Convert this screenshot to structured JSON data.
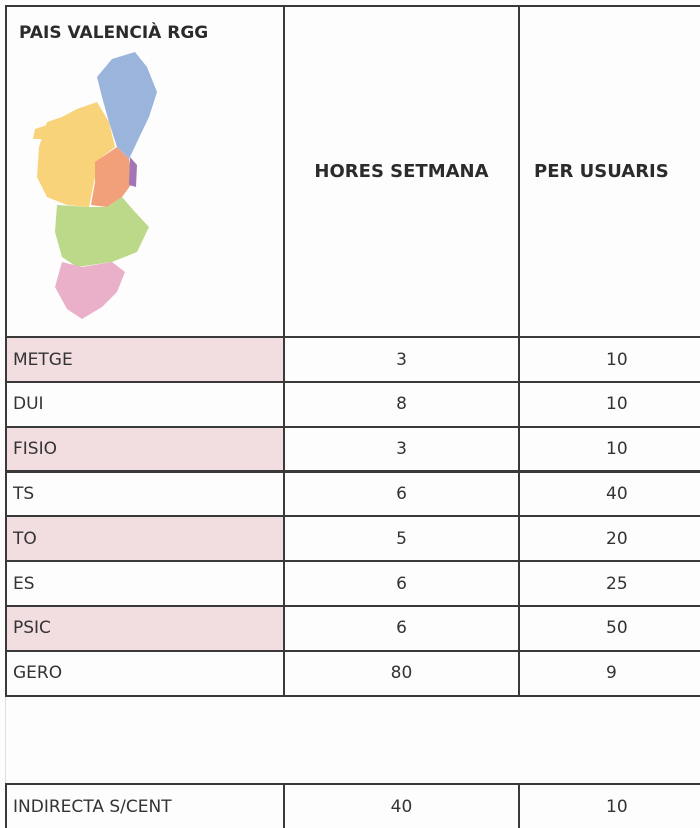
{
  "header": {
    "title": "PAIS VALENCIÀ RGG",
    "columns": [
      "HORES SETMANA",
      "PER USUARIS"
    ]
  },
  "table": {
    "rows": [
      [
        "METGE",
        3,
        10
      ],
      [
        "DUI",
        8,
        10
      ],
      [
        "FISIO",
        3,
        10
      ],
      [
        "TS",
        6,
        40
      ],
      [
        "TO",
        5,
        20
      ],
      [
        "ES",
        6,
        25
      ],
      [
        "PSIC",
        6,
        50
      ],
      [
        "GERO",
        80,
        9
      ]
    ]
  },
  "footer": {
    "row": [
      "INDIRECTA S/CENT",
      40,
      10
    ]
  }
}
